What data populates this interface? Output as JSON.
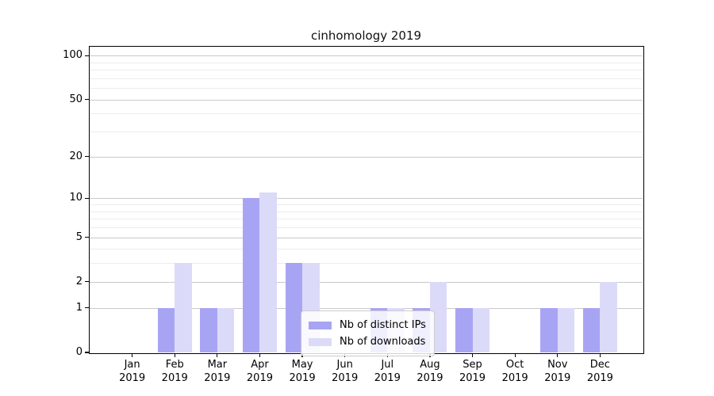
{
  "figure": {
    "background": "#ffffff"
  },
  "chart_data": {
    "type": "bar",
    "title": "cinhomology 2019",
    "categories": [
      "Jan 2019",
      "Feb 2019",
      "Mar 2019",
      "Apr 2019",
      "May 2019",
      "Jun 2019",
      "Jul 2019",
      "Aug 2019",
      "Sep 2019",
      "Oct 2019",
      "Nov 2019",
      "Dec 2019"
    ],
    "series": [
      {
        "name": "Nb of distinct IPs",
        "color": "#a8a4f4",
        "values": [
          0,
          1,
          1,
          10,
          3,
          0,
          1,
          1,
          1,
          0,
          1,
          1
        ]
      },
      {
        "name": "Nb of downloads",
        "color": "#dcdaf9",
        "values": [
          0,
          3,
          1,
          11,
          3,
          0,
          1,
          2,
          1,
          0,
          1,
          2
        ]
      }
    ],
    "xlabel": "",
    "ylabel": "",
    "yscale": "log1p",
    "ylim": [
      0,
      115
    ],
    "y_ticks": [
      0,
      1,
      2,
      5,
      10,
      20,
      50,
      100
    ],
    "y_minor_ticks": [
      3,
      4,
      6,
      7,
      8,
      9,
      30,
      40,
      60,
      70,
      80,
      90
    ],
    "grid": true,
    "legend_position": "lower center",
    "colors": {
      "major_grid": "#c9c9c9",
      "minor_grid": "#ececec",
      "spine": "#000000",
      "text": "#000000"
    }
  }
}
